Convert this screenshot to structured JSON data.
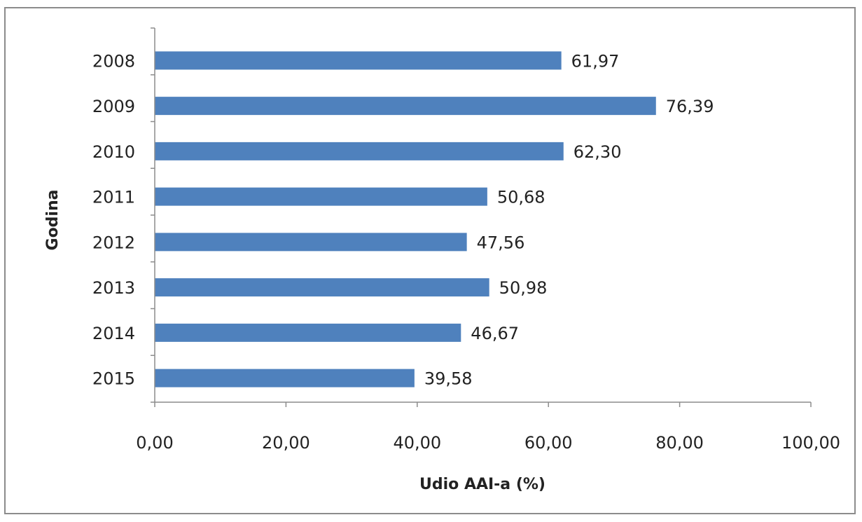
{
  "chart_data": {
    "type": "bar",
    "orientation": "horizontal",
    "categories": [
      "2008",
      "2009",
      "2010",
      "2011",
      "2012",
      "2013",
      "2014",
      "2015"
    ],
    "values": [
      61.97,
      76.39,
      62.3,
      50.68,
      47.56,
      50.98,
      46.67,
      39.58
    ],
    "data_labels": [
      "61,97",
      "76,39",
      "62,30",
      "50,68",
      "47,56",
      "50,98",
      "46,67",
      "39,58"
    ],
    "xlabel": "Udio AAI-a (%)",
    "ylabel": "Godina",
    "xlim": [
      0,
      100
    ],
    "x_ticks": [
      0,
      20,
      40,
      60,
      80,
      100
    ],
    "x_tick_labels": [
      "0,00",
      "20,00",
      "40,00",
      "60,00",
      "80,00",
      "100,00"
    ],
    "grid": false,
    "legend": "none",
    "bar_color": "#4f81bd"
  }
}
